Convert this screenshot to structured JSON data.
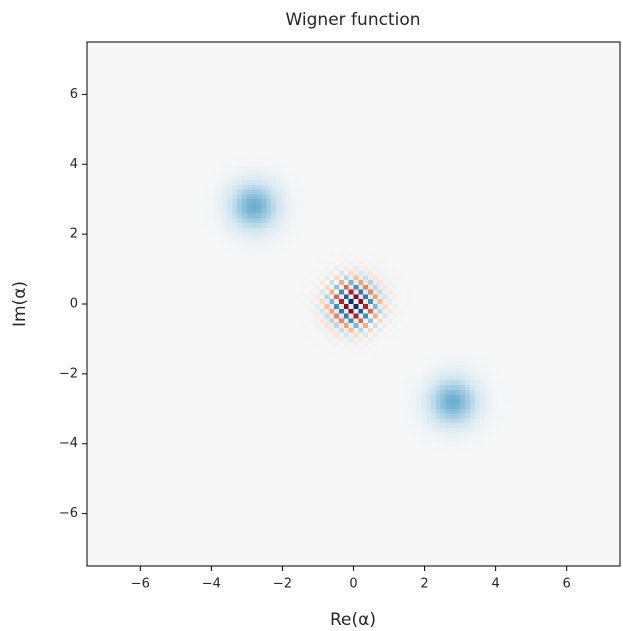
{
  "chart_data": {
    "type": "wigner",
    "title": "Wigner function",
    "xlabel": "Re(α)",
    "ylabel": "Im(α)",
    "alpha": [
      -2.8,
      2.8
    ],
    "colormap": "RdBu",
    "xlim": [
      -7.5,
      7.5
    ],
    "ylim": [
      -7.5,
      7.5
    ],
    "xticks": [
      {
        "value": -6,
        "label": "−6"
      },
      {
        "value": -4,
        "label": "−4"
      },
      {
        "value": -2,
        "label": "−2"
      },
      0,
      2,
      4,
      6
    ],
    "yticks": [
      {
        "value": -6,
        "label": "−6"
      },
      {
        "value": -4,
        "label": "−4"
      },
      {
        "value": -2,
        "label": "−2"
      },
      0,
      2,
      4,
      6
    ]
  }
}
